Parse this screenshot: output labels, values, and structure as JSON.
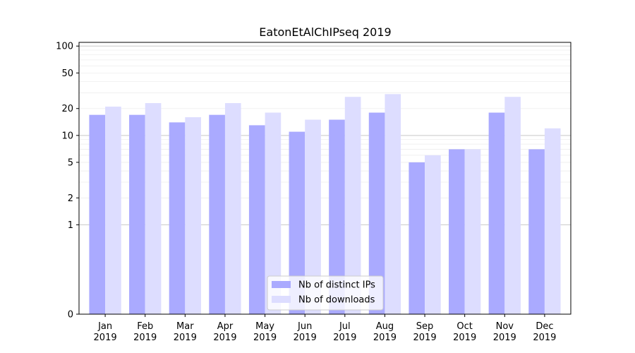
{
  "chart_data": {
    "type": "bar",
    "title": "EatonEtAlChIPseq 2019",
    "xlabel": "",
    "ylabel": "",
    "y_scale": "symlog",
    "ylim": [
      0,
      110
    ],
    "yticks": [
      0,
      1,
      2,
      5,
      10,
      20,
      50,
      100
    ],
    "ytick_labels": [
      "0",
      "1",
      "2",
      "5",
      "10",
      "20",
      "50",
      "100"
    ],
    "categories": [
      "Jan\n2019",
      "Feb\n2019",
      "Mar\n2019",
      "Apr\n2019",
      "May\n2019",
      "Jun\n2019",
      "Jul\n2019",
      "Aug\n2019",
      "Sep\n2019",
      "Oct\n2019",
      "Nov\n2019",
      "Dec\n2019"
    ],
    "series": [
      {
        "name": "Nb of distinct IPs",
        "values": [
          17,
          17,
          14,
          17,
          13,
          11,
          15,
          18,
          5,
          7,
          18,
          7
        ],
        "color": "#aaaaff"
      },
      {
        "name": "Nb of downloads",
        "values": [
          21,
          23,
          16,
          23,
          18,
          15,
          27,
          29,
          6,
          7,
          27,
          12
        ],
        "color": "#ddddff"
      }
    ],
    "legend_position": "lower-center",
    "grid": true
  }
}
